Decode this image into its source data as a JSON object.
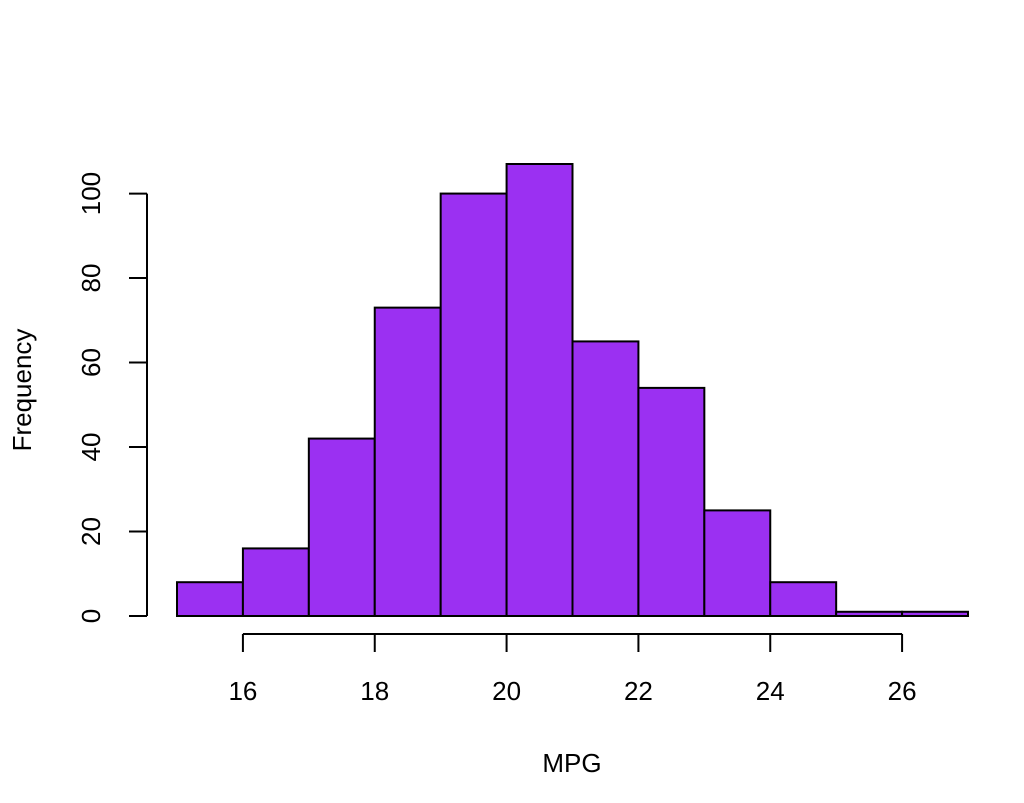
{
  "chart_data": {
    "type": "bar",
    "title": "",
    "xlabel": "MPG",
    "ylabel": "Frequency",
    "bins": [
      {
        "start": 15,
        "end": 16,
        "value": 8
      },
      {
        "start": 16,
        "end": 17,
        "value": 16
      },
      {
        "start": 17,
        "end": 18,
        "value": 42
      },
      {
        "start": 18,
        "end": 19,
        "value": 73
      },
      {
        "start": 19,
        "end": 20,
        "value": 100
      },
      {
        "start": 20,
        "end": 21,
        "value": 107
      },
      {
        "start": 21,
        "end": 22,
        "value": 65
      },
      {
        "start": 22,
        "end": 23,
        "value": 54
      },
      {
        "start": 23,
        "end": 24,
        "value": 25
      },
      {
        "start": 24,
        "end": 25,
        "value": 8
      },
      {
        "start": 25,
        "end": 26,
        "value": 1
      },
      {
        "start": 26,
        "end": 27,
        "value": 1
      }
    ],
    "x_ticks": [
      "16",
      "18",
      "20",
      "22",
      "24",
      "26"
    ],
    "y_ticks": [
      "0",
      "20",
      "40",
      "60",
      "80",
      "100"
    ],
    "xlim": [
      15,
      27
    ],
    "ylim": [
      0,
      107
    ],
    "grid": false,
    "legend": "none",
    "colors": {
      "bar_fill": "#9b30f2",
      "bar_stroke": "#000000",
      "axis": "#000000"
    }
  }
}
